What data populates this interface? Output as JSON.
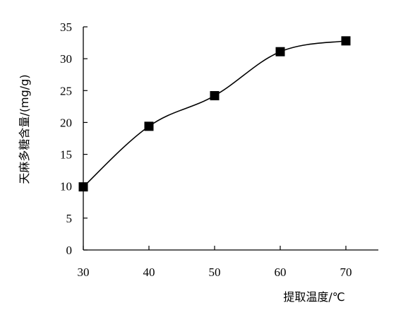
{
  "chart_data": {
    "type": "line",
    "xlabel": "提取温度/℃",
    "ylabel": "天麻多糖含量/(mg/g)",
    "xlim": [
      30,
      75
    ],
    "ylim": [
      0,
      35
    ],
    "x_ticks": [
      30,
      40,
      50,
      60,
      70
    ],
    "y_ticks": [
      0,
      5,
      10,
      15,
      20,
      25,
      30,
      35
    ],
    "x_tick_labels": [
      "30",
      "40",
      "50",
      "60",
      "70"
    ],
    "y_tick_labels": [
      "0",
      "5",
      "10",
      "15",
      "20",
      "25",
      "30",
      "35"
    ],
    "grid": false,
    "legend": "none",
    "series": [
      {
        "marker": "square",
        "color": "#000000",
        "x": [
          30,
          40,
          50,
          60,
          70
        ],
        "y": [
          9.9,
          19.4,
          24.2,
          31.1,
          32.8
        ]
      }
    ]
  }
}
